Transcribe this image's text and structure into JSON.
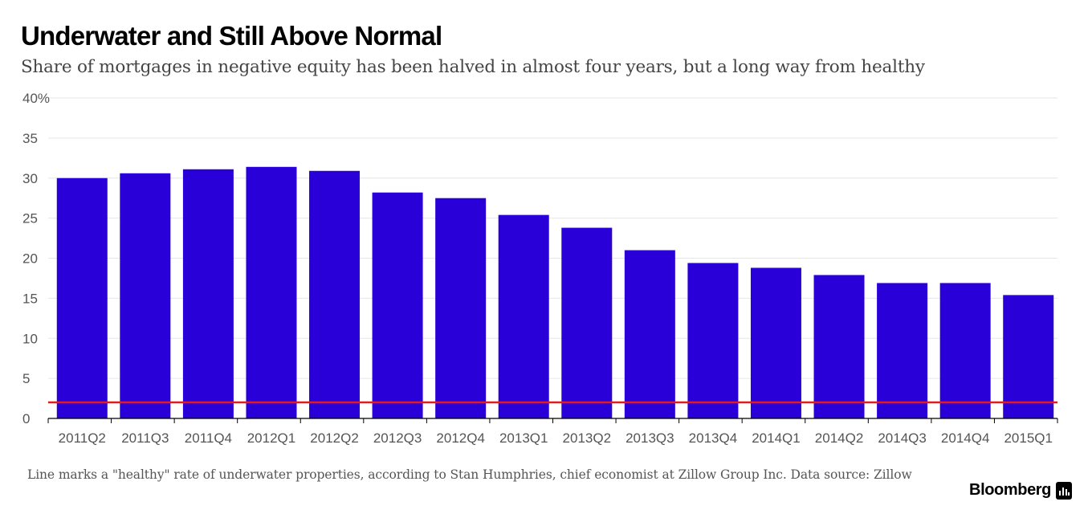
{
  "header": {
    "title": "Underwater and Still Above Normal",
    "subtitle": "Share of mortgages in negative equity has been halved in almost four years, but a long way from healthy"
  },
  "chart_data": {
    "type": "bar",
    "categories": [
      "2011Q2",
      "2011Q3",
      "2011Q4",
      "2012Q1",
      "2012Q2",
      "2012Q3",
      "2012Q4",
      "2013Q1",
      "2013Q2",
      "2013Q3",
      "2013Q4",
      "2014Q1",
      "2014Q2",
      "2014Q3",
      "2014Q4",
      "2015Q1"
    ],
    "values": [
      30.0,
      30.6,
      31.1,
      31.4,
      30.9,
      28.2,
      27.5,
      25.4,
      23.8,
      21.0,
      19.4,
      18.8,
      17.9,
      16.9,
      16.9,
      15.4
    ],
    "ylim": [
      0,
      40
    ],
    "yticks": [
      0,
      5,
      10,
      15,
      20,
      25,
      30,
      35,
      40
    ],
    "ytick_labels": [
      "0",
      "5",
      "10",
      "15",
      "20",
      "25",
      "30",
      "35",
      "40%"
    ],
    "reference_line": 2.0,
    "grid": true,
    "colors": {
      "bar": "#2a00d8",
      "reference_line": "#e41a1c",
      "grid": "#e6e6e6",
      "axis": "#000000",
      "tick_text": "#555555"
    }
  },
  "footer": {
    "note": "Line marks a \"healthy\" rate of underwater properties, according to Stan Humphries, chief economist at Zillow Group Inc. Data source: Zillow",
    "brand": "Bloomberg",
    "brand_icon": "bar-chart-icon"
  }
}
